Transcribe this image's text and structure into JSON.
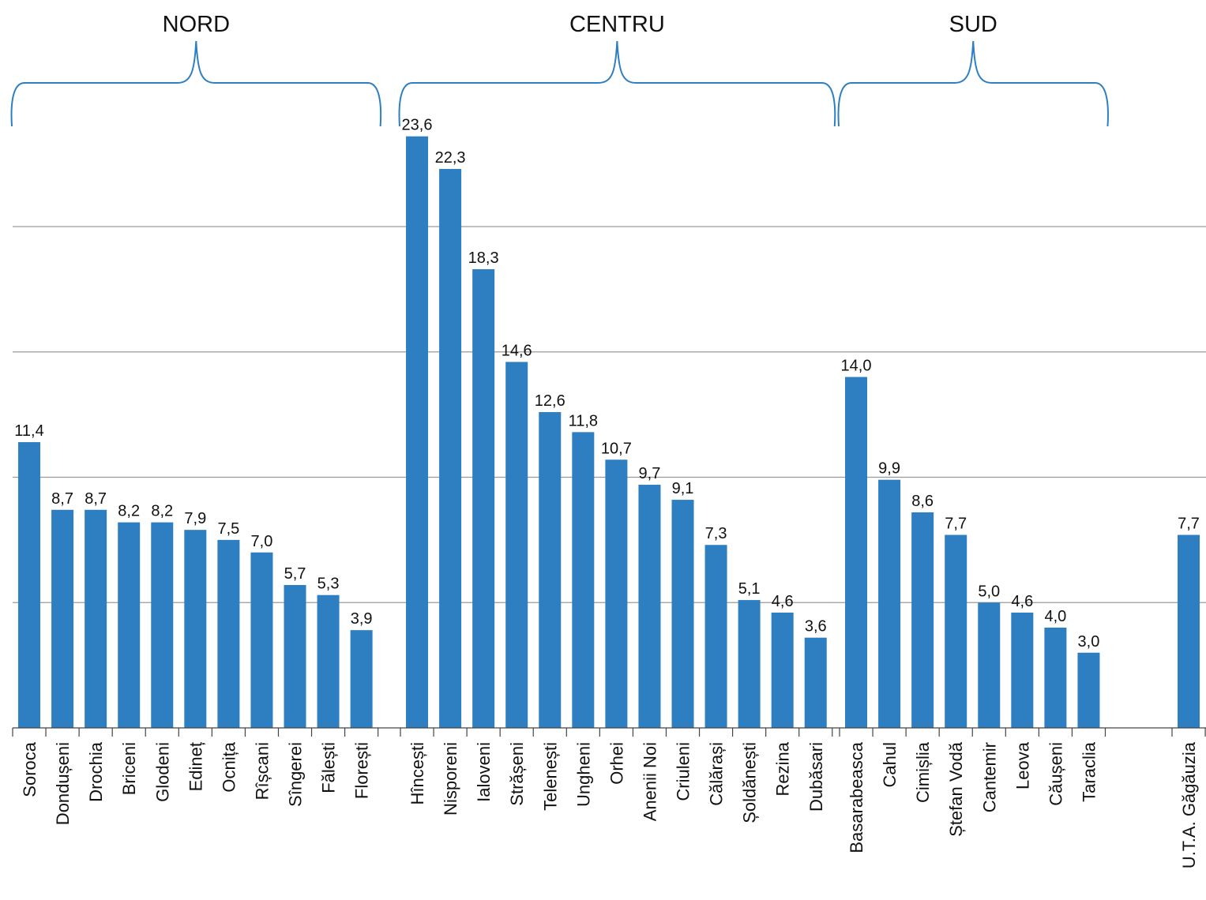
{
  "chart_data": {
    "type": "bar",
    "title": "",
    "xlabel": "",
    "ylabel": "",
    "ylim": [
      0,
      25
    ],
    "grid": true,
    "bar_color": "#2e7fc2",
    "brace_color": "#2e7fc2",
    "groups": [
      {
        "name": "NORD",
        "categories": [
          "Soroca",
          "Dondușeni",
          "Drochia",
          "Briceni",
          "Glodeni",
          "Edineț",
          "Ocnița",
          "Rîșcani",
          "Sîngerei",
          "Fălești",
          "Florești"
        ],
        "values": [
          11.4,
          8.7,
          8.7,
          8.2,
          8.2,
          7.9,
          7.5,
          7.0,
          5.7,
          5.3,
          3.9
        ],
        "labels": [
          "11,4",
          "8,7",
          "8,7",
          "8,2",
          "8,2",
          "7,9",
          "7,5",
          "7,0",
          "5,7",
          "5,3",
          "3,9"
        ]
      },
      {
        "name": "CENTRU",
        "categories": [
          "Hîncești",
          "Nisporeni",
          "Ialoveni",
          "Strășeni",
          "Telenești",
          "Ungheni",
          "Orhei",
          "Anenii Noi",
          "Criuleni",
          "Călărași",
          "Șoldănești",
          "Rezina",
          "Dubăsari"
        ],
        "values": [
          23.6,
          22.3,
          18.3,
          14.6,
          12.6,
          11.8,
          10.7,
          9.7,
          9.1,
          7.3,
          5.1,
          4.6,
          3.6
        ],
        "labels": [
          "23,6",
          "22,3",
          "18,3",
          "14,6",
          "12,6",
          "11,8",
          "10,7",
          "9,7",
          "9,1",
          "7,3",
          "5,1",
          "4,6",
          "3,6"
        ]
      },
      {
        "name": "SUD",
        "categories": [
          "Basarabeasca",
          "Cahul",
          "Cimișlia",
          "Ștefan Vodă",
          "Cantemir",
          "Leova",
          "Căușeni",
          "Taraclia"
        ],
        "values": [
          14.0,
          9.9,
          8.6,
          7.7,
          5.0,
          4.6,
          4.0,
          3.0
        ],
        "labels": [
          "14,0",
          "9,9",
          "8,6",
          "7,7",
          "5,0",
          "4,6",
          "4,0",
          "3,0"
        ]
      },
      {
        "name": "",
        "categories": [
          "U.T.A. Găgăuzia"
        ],
        "values": [
          7.7
        ],
        "labels": [
          "7,7"
        ]
      }
    ]
  }
}
